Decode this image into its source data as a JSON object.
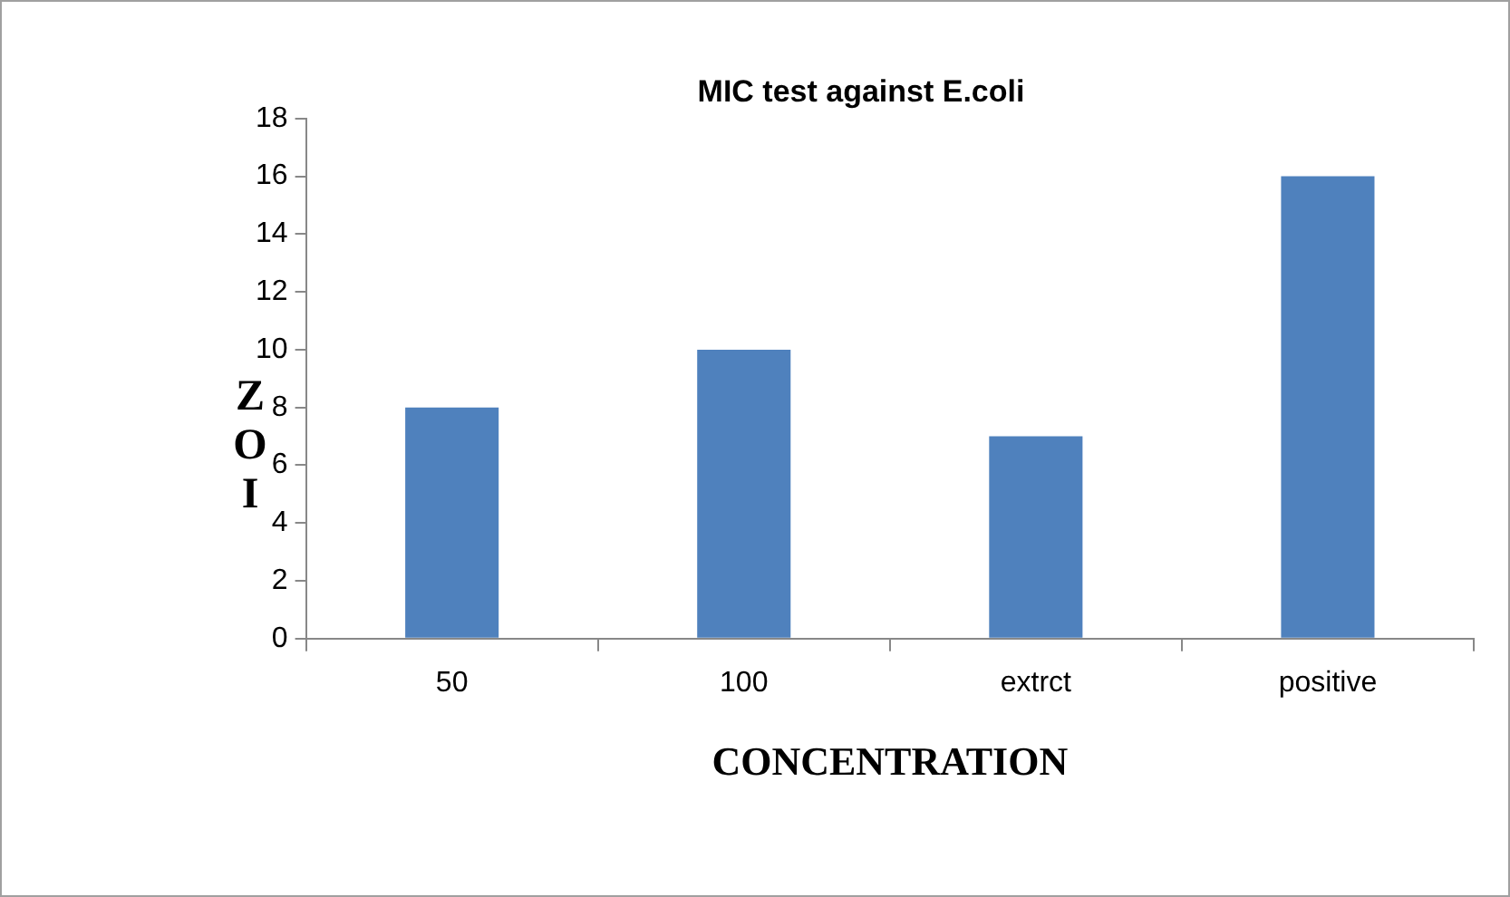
{
  "chart_data": {
    "type": "bar",
    "title": "MIC test against E.coli",
    "xlabel": "CONCENTRATION",
    "ylabel": "ZOI",
    "categories": [
      "50",
      "100",
      "extrct",
      "positive"
    ],
    "values": [
      8,
      10,
      7,
      16
    ],
    "color": "#4f81bd",
    "ylim": [
      0,
      18
    ],
    "yticks": [
      0,
      2,
      4,
      6,
      8,
      10,
      12,
      14,
      16,
      18
    ],
    "grid": false,
    "legend": false
  }
}
